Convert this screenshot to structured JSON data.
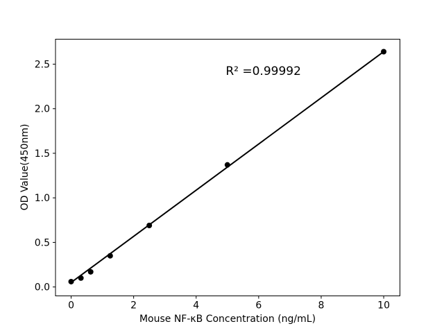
{
  "figure": {
    "background": "#ffffff"
  },
  "chart_data": {
    "type": "scatter",
    "title": "",
    "xlabel": "Mouse NF-κB Concentration (ng/mL)",
    "ylabel": "OD Value(450nm)",
    "x": [
      0,
      0.313,
      0.625,
      1.25,
      2.5,
      5,
      10
    ],
    "y": [
      0.06,
      0.1,
      0.17,
      0.35,
      0.69,
      1.37,
      2.64
    ],
    "fit_line": {
      "x": [
        0,
        10
      ],
      "y": [
        0.05,
        2.64
      ]
    },
    "annotation": {
      "text": "R² =0.99992",
      "x": 6.15,
      "y": 2.42
    },
    "xlim": [
      -0.5,
      10.52
    ],
    "ylim": [
      -0.1,
      2.78
    ],
    "xticks": [
      0,
      2,
      4,
      6,
      8,
      10
    ],
    "yticks": [
      0,
      0.5,
      1,
      1.5,
      2,
      2.5
    ],
    "ytick_decimals": 1,
    "grid": false,
    "legend": null,
    "marker_color": "#000000",
    "line_color": "#000000",
    "axis_color": "#000000",
    "tick_font_px": 14,
    "marker_radius": 4,
    "line_width": 2
  }
}
